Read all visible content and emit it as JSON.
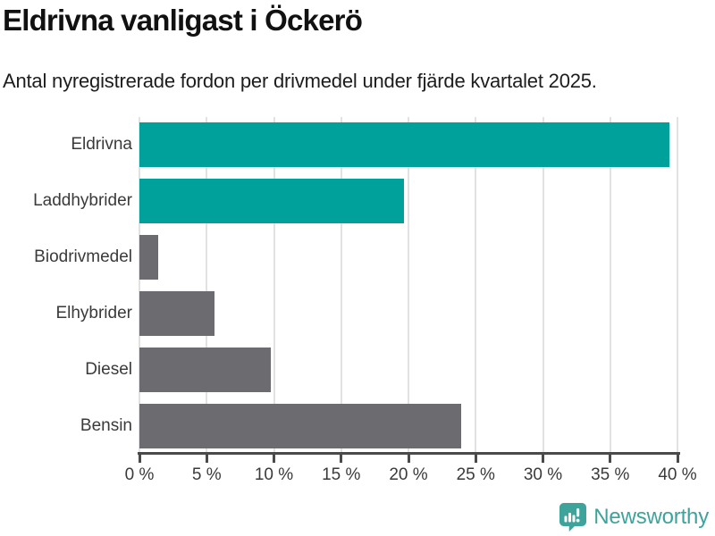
{
  "header": {
    "title": "Eldrivna vanligast i Öckerö",
    "subtitle": "Antal nyregistrerade fordon per drivmedel under fjärde kvartalet 2025."
  },
  "chart_data": {
    "type": "bar",
    "orientation": "horizontal",
    "title": "Eldrivna vanligast i Öckerö",
    "subtitle": "Antal nyregistrerade fordon per drivmedel under fjärde kvartalet 2025.",
    "categories": [
      "Eldrivna",
      "Laddhybrider",
      "Biodrivmedel",
      "Elhybrider",
      "Diesel",
      "Bensin"
    ],
    "values": [
      39.4,
      19.7,
      1.4,
      5.6,
      9.8,
      23.9
    ],
    "unit": "%",
    "xlim": [
      0,
      40
    ],
    "x_ticks": [
      0,
      5,
      10,
      15,
      20,
      25,
      30,
      35,
      40
    ],
    "x_tick_labels": [
      "0 %",
      "5 %",
      "10 %",
      "15 %",
      "20 %",
      "25 %",
      "30 %",
      "35 %",
      "40 %"
    ],
    "bar_colors": [
      "#00a19a",
      "#00a19a",
      "#6c6b70",
      "#6c6b70",
      "#6c6b70",
      "#6c6b70"
    ],
    "grid": true,
    "legend": "none",
    "highlight_color": "#00a19a",
    "default_bar_color": "#6c6b70"
  },
  "footer": {
    "brand": "Newsworthy",
    "logo_icon": "bar-chart-speech-bubble-icon",
    "brand_color": "#3ea39b"
  },
  "colors": {
    "accent_teal": "#00a19a",
    "neutral_bar_gray": "#6c6b70",
    "axis": "#4a4a4a",
    "gridline": "#e2e2e2",
    "label_text": "#3a3a3a",
    "title_text": "#111111"
  }
}
